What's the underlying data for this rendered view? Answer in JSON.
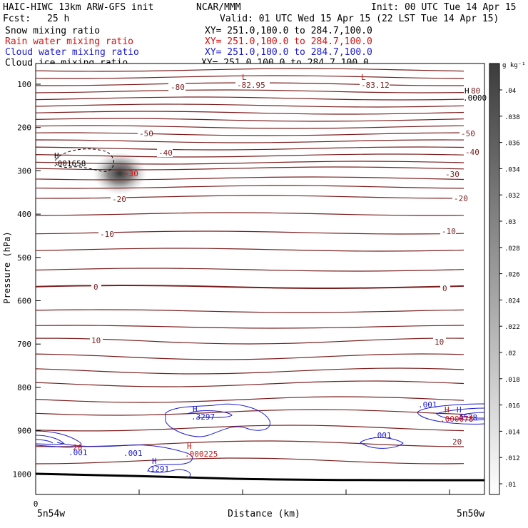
{
  "header": {
    "model": "HAIC-HIWC 13km ARW-GFS init",
    "org": "NCAR/MMM",
    "init": "Init: 00 UTC Tue 14 Apr 15",
    "fcst_label": "Fcst:",
    "fcst_value": "25 h",
    "valid": "Valid: 01 UTC Wed 15 Apr 15 (22 LST Tue 14 Apr 15)"
  },
  "fields": [
    {
      "name": "Snow mixing ratio",
      "xy": "XY= 251.0,100.0 to 284.7,100.0",
      "color": "#000000"
    },
    {
      "name": "Rain water mixing ratio",
      "xy": "XY= 251.0,100.0 to 284.7,100.0",
      "color": "#d01010"
    },
    {
      "name": "Cloud water mixing ratio",
      "xy": "XY= 251.0,100.0 to 284.7,100.0",
      "color": "#1a1ad0"
    },
    {
      "name": "Cloud ice mixing ratio",
      "xy": "XY= 251.0,100.0 to 284.7,100.0",
      "color": "#000000"
    }
  ],
  "colors": {
    "temperature": "#7a1e1e",
    "cloud_water": "#1a1ad0",
    "rain_water": "#d01010",
    "snow": "#000000"
  },
  "chart_data": {
    "type": "contour",
    "ylabel": "Pressure (hPa)",
    "xlabel": "Distance (km)",
    "x_tick_labels": [
      "0"
    ],
    "x_endpoint_labels": [
      "5n54w",
      "5n50w"
    ],
    "y_ticks": [
      100,
      200,
      300,
      400,
      500,
      600,
      700,
      800,
      900,
      1000
    ],
    "ylim": [
      1050,
      50
    ],
    "colorbar": {
      "unit": "g kg⁻¹",
      "ticks": [
        ".04",
        ".038",
        ".036",
        ".034",
        ".032",
        ".03",
        ".028",
        ".026",
        ".024",
        ".022",
        ".02",
        ".018",
        ".016",
        ".014",
        ".012",
        ".01"
      ]
    },
    "temperature_contour_labels": [
      "-80",
      "-50",
      "-40",
      "-30",
      "-20",
      "-10",
      "0",
      "10",
      "20"
    ],
    "extrema": [
      {
        "type": "L",
        "value": "-82.95"
      },
      {
        "type": "L",
        "value": "-83.12"
      },
      {
        "type": "H",
        "value": ".0000"
      },
      {
        "type": "H",
        "value": ".001658"
      },
      {
        "type": "H",
        "value": ".3297"
      },
      {
        "type": "H",
        "value": ".000225"
      },
      {
        "type": "H",
        "value": ".1291"
      },
      {
        "type": "H",
        "value": ".4578"
      },
      {
        "type": "H",
        "value": ".000078"
      }
    ],
    "cloud_water_contour_labels": [
      ".001",
      ".001",
      ".001",
      ".001"
    ],
    "extra_labels": {
      "top_right_h": "H",
      "top_right_80": "80",
      "left_20": "20"
    }
  }
}
